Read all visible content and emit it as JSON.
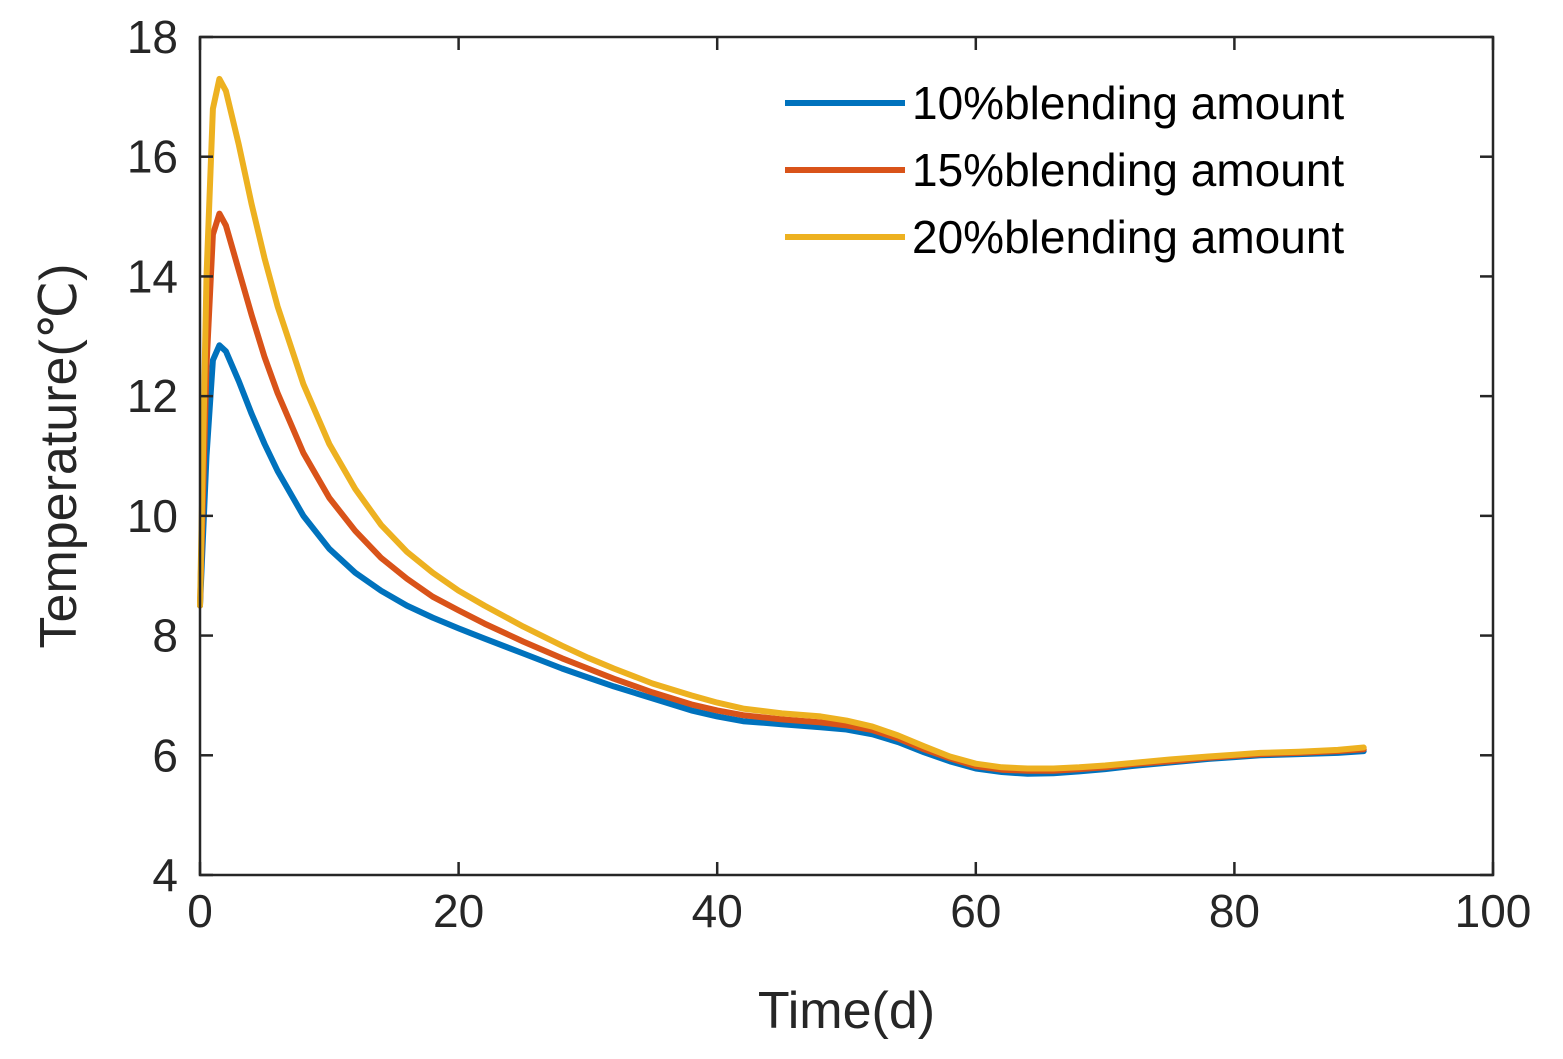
{
  "chart_data": {
    "type": "line",
    "title": "",
    "xlabel": "Time(d)",
    "ylabel": "Temperature(℃)",
    "xlim": [
      0,
      100
    ],
    "ylim": [
      4,
      18
    ],
    "xticks": [
      "0",
      "20",
      "40",
      "60",
      "80",
      "100"
    ],
    "yticks": [
      "4",
      "6",
      "8",
      "10",
      "12",
      "14",
      "16",
      "18"
    ],
    "grid": false,
    "legend_position": "top-right",
    "series": [
      {
        "name": "10%blending amount",
        "color": "#0072BD",
        "x": [
          0,
          0.5,
          1,
          1.5,
          2,
          3,
          4,
          5,
          6,
          8,
          10,
          12,
          14,
          16,
          18,
          20,
          22,
          25,
          28,
          30,
          32,
          35,
          38,
          40,
          42,
          45,
          48,
          50,
          52,
          54,
          56,
          58,
          60,
          62,
          64,
          66,
          68,
          70,
          72,
          75,
          78,
          80,
          82,
          85,
          88,
          90
        ],
        "y": [
          8.5,
          11.0,
          12.6,
          12.85,
          12.75,
          12.25,
          11.7,
          11.2,
          10.75,
          10.0,
          9.45,
          9.05,
          8.75,
          8.5,
          8.3,
          8.12,
          7.95,
          7.7,
          7.45,
          7.3,
          7.15,
          6.95,
          6.75,
          6.65,
          6.57,
          6.52,
          6.47,
          6.43,
          6.35,
          6.22,
          6.05,
          5.9,
          5.78,
          5.72,
          5.69,
          5.7,
          5.73,
          5.77,
          5.82,
          5.88,
          5.94,
          5.97,
          6.0,
          6.02,
          6.04,
          6.07
        ]
      },
      {
        "name": "15%blending amount",
        "color": "#D95319",
        "x": [
          0,
          0.5,
          1,
          1.5,
          2,
          3,
          4,
          5,
          6,
          8,
          10,
          12,
          14,
          16,
          18,
          20,
          22,
          25,
          28,
          30,
          32,
          35,
          38,
          40,
          42,
          45,
          48,
          50,
          52,
          54,
          56,
          58,
          60,
          62,
          64,
          66,
          68,
          70,
          72,
          75,
          78,
          80,
          82,
          85,
          88,
          90
        ],
        "y": [
          8.5,
          12.5,
          14.7,
          15.05,
          14.85,
          14.1,
          13.35,
          12.65,
          12.05,
          11.05,
          10.3,
          9.75,
          9.3,
          8.95,
          8.65,
          8.42,
          8.2,
          7.9,
          7.62,
          7.45,
          7.28,
          7.05,
          6.85,
          6.75,
          6.67,
          6.6,
          6.55,
          6.5,
          6.42,
          6.28,
          6.1,
          5.95,
          5.82,
          5.76,
          5.74,
          5.74,
          5.77,
          5.8,
          5.85,
          5.9,
          5.96,
          5.99,
          6.02,
          6.04,
          6.07,
          6.1
        ]
      },
      {
        "name": "20%blending amount",
        "color": "#EDB120",
        "x": [
          0,
          0.5,
          1,
          1.5,
          2,
          3,
          4,
          5,
          6,
          8,
          10,
          12,
          14,
          16,
          18,
          20,
          22,
          25,
          28,
          30,
          32,
          35,
          38,
          40,
          42,
          45,
          48,
          50,
          52,
          54,
          56,
          58,
          60,
          62,
          64,
          66,
          68,
          70,
          72,
          75,
          78,
          80,
          82,
          85,
          88,
          90
        ],
        "y": [
          8.5,
          14.0,
          16.8,
          17.3,
          17.1,
          16.2,
          15.2,
          14.3,
          13.5,
          12.2,
          11.2,
          10.45,
          9.85,
          9.4,
          9.05,
          8.75,
          8.5,
          8.15,
          7.83,
          7.63,
          7.45,
          7.2,
          7.0,
          6.88,
          6.78,
          6.7,
          6.65,
          6.58,
          6.48,
          6.33,
          6.15,
          5.98,
          5.86,
          5.8,
          5.78,
          5.78,
          5.8,
          5.83,
          5.87,
          5.93,
          5.98,
          6.01,
          6.04,
          6.06,
          6.09,
          6.13
        ]
      }
    ]
  }
}
